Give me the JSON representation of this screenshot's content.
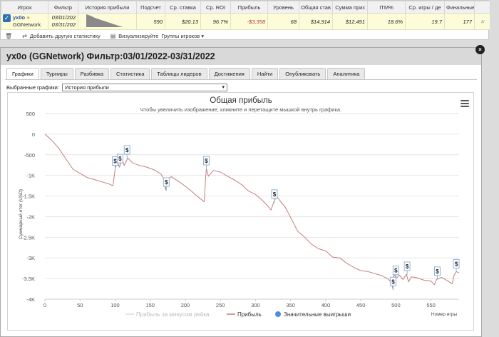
{
  "stats_table": {
    "headers": [
      "Игрок",
      "Фильтр",
      "История прибыли",
      "Подсчет",
      "Ср. ставка",
      "Ср. ROI",
      "Прибыль",
      "Уровень",
      "Общая став",
      "Сумма приз",
      "ITM%",
      "Ср. игры / де",
      "Финальные"
    ],
    "row": {
      "player": "yx0o",
      "network": "GGNetwork",
      "filter_from": "03/01/202",
      "filter_to": "03/31/202",
      "count": "590",
      "avg_stake": "$20.13",
      "avg_roi": "96.7%",
      "profit": "-$3,358",
      "level": "68",
      "total_stake": "$14,914",
      "prize_sum": "$12,491",
      "itm": "18.6%",
      "avg_games_day": "19.7",
      "finals": "177"
    },
    "toolbar": {
      "add_label": "Добавить другую статистику",
      "visualize_label": "Визуализируйте",
      "groups_label": "Группы игроков"
    }
  },
  "dialog": {
    "title": "yx0o (GGNetwork) Фильтр:03/01/2022-03/31/2022",
    "close_label": "×",
    "tabs": [
      "Графики",
      "Турниры",
      "Разбивка",
      "Статистика",
      "Таблицы лидеров",
      "Достижения",
      "Найти",
      "Опубликовать",
      "Аналитика"
    ],
    "active_tab": "Графики",
    "selected_label": "Выбранные графики:",
    "selected_value": "История прибыли"
  },
  "chart_data": {
    "type": "line",
    "title": "Общая прибыль",
    "subtitle": "Чтобы увеличить изображение, кликните и перетащите мышкой внутрь графика.",
    "xlabel": "Номер игры",
    "ylabel": "Суммарный итог (USD)",
    "xlim": [
      0,
      590
    ],
    "ylim": [
      -4000,
      500
    ],
    "x_ticks": [
      0,
      50,
      100,
      150,
      200,
      250,
      300,
      350,
      400,
      450,
      500,
      550
    ],
    "y_ticks": [
      500,
      0,
      -500,
      -1000,
      -1500,
      -2000,
      -2500,
      -3000,
      -3500,
      -4000
    ],
    "y_tick_labels": [
      "500",
      "0",
      "-500",
      "-1K",
      "-1.5K",
      "-2K",
      "-2.5K",
      "-3K",
      "-3.5K",
      "-4K"
    ],
    "series": [
      {
        "name": "Прибыль",
        "color": "#c47d7d",
        "points": [
          [
            0,
            0
          ],
          [
            10,
            -150
          ],
          [
            20,
            -350
          ],
          [
            30,
            -600
          ],
          [
            40,
            -850
          ],
          [
            50,
            -950
          ],
          [
            60,
            -1050
          ],
          [
            70,
            -1100
          ],
          [
            80,
            -1150
          ],
          [
            90,
            -1200
          ],
          [
            97,
            -1250
          ],
          [
            100,
            -850
          ],
          [
            103,
            -650
          ],
          [
            106,
            -800
          ],
          [
            110,
            -620
          ],
          [
            113,
            -760
          ],
          [
            118,
            -580
          ],
          [
            125,
            -700
          ],
          [
            135,
            -760
          ],
          [
            145,
            -800
          ],
          [
            155,
            -860
          ],
          [
            165,
            -960
          ],
          [
            170,
            -1100
          ],
          [
            172,
            -1350
          ],
          [
            174,
            -1100
          ],
          [
            180,
            -1030
          ],
          [
            190,
            -1140
          ],
          [
            200,
            -1260
          ],
          [
            210,
            -1400
          ],
          [
            218,
            -1520
          ],
          [
            224,
            -1600
          ],
          [
            227,
            -1640
          ],
          [
            229,
            -1050
          ],
          [
            230,
            -840
          ],
          [
            233,
            -1020
          ],
          [
            240,
            -880
          ],
          [
            250,
            -920
          ],
          [
            260,
            -1020
          ],
          [
            270,
            -1110
          ],
          [
            280,
            -1220
          ],
          [
            290,
            -1380
          ],
          [
            300,
            -1460
          ],
          [
            310,
            -1610
          ],
          [
            318,
            -1750
          ],
          [
            322,
            -1840
          ],
          [
            326,
            -1650
          ],
          [
            330,
            -1500
          ],
          [
            335,
            -1620
          ],
          [
            342,
            -1760
          ],
          [
            350,
            -2020
          ],
          [
            360,
            -2350
          ],
          [
            370,
            -2500
          ],
          [
            380,
            -2670
          ],
          [
            390,
            -2780
          ],
          [
            400,
            -2830
          ],
          [
            410,
            -2980
          ],
          [
            420,
            -3000
          ],
          [
            430,
            -3130
          ],
          [
            440,
            -3230
          ],
          [
            450,
            -3310
          ],
          [
            460,
            -3330
          ],
          [
            470,
            -3380
          ],
          [
            480,
            -3430
          ],
          [
            490,
            -3520
          ],
          [
            494,
            -3640
          ],
          [
            496,
            -3760
          ],
          [
            497,
            -3370
          ],
          [
            500,
            -3500
          ],
          [
            505,
            -3420
          ],
          [
            510,
            -3520
          ],
          [
            515,
            -3400
          ],
          [
            518,
            -3580
          ],
          [
            522,
            -3460
          ],
          [
            530,
            -3480
          ],
          [
            540,
            -3540
          ],
          [
            550,
            -3560
          ],
          [
            555,
            -3650
          ],
          [
            558,
            -3520
          ],
          [
            565,
            -3470
          ],
          [
            575,
            -3570
          ],
          [
            580,
            -3630
          ],
          [
            583,
            -3420
          ],
          [
            586,
            -3330
          ],
          [
            590,
            -3360
          ]
        ]
      },
      {
        "name": "Прибыль за минусом рейка",
        "color": "#dcdcdc",
        "points": []
      }
    ],
    "big_wins": {
      "name": "Значительные выигрыши",
      "marker_color": "#4d8fd6",
      "label": "$",
      "points": [
        [
          100,
          -860
        ],
        [
          107,
          -800
        ],
        [
          117,
          -590
        ],
        [
          173,
          -1370
        ],
        [
          230,
          -850
        ],
        [
          327,
          -1660
        ],
        [
          496,
          -3780
        ],
        [
          500,
          -3510
        ],
        [
          516,
          -3410
        ],
        [
          559,
          -3530
        ],
        [
          586,
          -3350
        ]
      ]
    },
    "legend": {
      "position": "bottom-center"
    }
  }
}
